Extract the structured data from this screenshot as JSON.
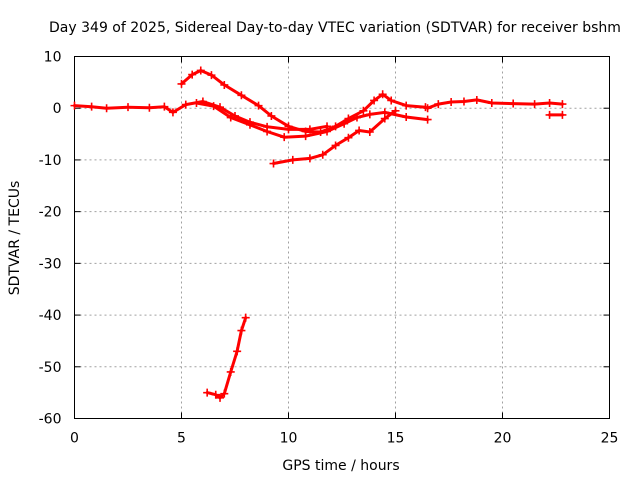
{
  "chart_data": {
    "type": "scatter",
    "title": "Day 349 of 2025, Sidereal Day-to-day VTEC variation (SDTVAR) for receiver bshm",
    "xlabel": "GPS time / hours",
    "ylabel": "SDTVAR / TECUs",
    "xlim": [
      0,
      25
    ],
    "ylim": [
      -60,
      10
    ],
    "xticks": [
      0,
      5,
      10,
      15,
      20,
      25
    ],
    "yticks": [
      10,
      0,
      -10,
      -20,
      -30,
      -40,
      -50,
      -60
    ],
    "grid": true,
    "color": "#ff0000",
    "series": [
      {
        "name": "s1",
        "points": [
          [
            0.0,
            0.5
          ],
          [
            0.8,
            0.3
          ],
          [
            1.5,
            0.0
          ],
          [
            2.5,
            0.2
          ],
          [
            3.5,
            0.1
          ],
          [
            4.2,
            0.3
          ],
          [
            4.6,
            -0.8
          ],
          [
            5.2,
            0.7
          ],
          [
            6.0,
            1.3
          ],
          [
            6.8,
            0.2
          ],
          [
            7.5,
            -1.5
          ],
          [
            8.2,
            -2.7
          ],
          [
            9.0,
            -3.6
          ],
          [
            10.0,
            -4.1
          ],
          [
            11.0,
            -4.1
          ],
          [
            11.8,
            -3.5
          ]
        ]
      },
      {
        "name": "s2",
        "points": [
          [
            5.0,
            4.7
          ],
          [
            5.5,
            6.5
          ],
          [
            5.9,
            7.3
          ],
          [
            6.4,
            6.4
          ],
          [
            7.0,
            4.5
          ],
          [
            7.8,
            2.5
          ],
          [
            8.6,
            0.5
          ],
          [
            9.2,
            -1.5
          ],
          [
            10.0,
            -3.5
          ],
          [
            10.8,
            -4.5
          ],
          [
            11.5,
            -4.6
          ],
          [
            12.2,
            -3.5
          ],
          [
            12.8,
            -2.0
          ],
          [
            13.5,
            -0.5
          ],
          [
            14.0,
            1.5
          ],
          [
            14.4,
            2.7
          ],
          [
            14.8,
            1.5
          ],
          [
            15.5,
            0.5
          ],
          [
            16.4,
            0.2
          ]
        ]
      },
      {
        "name": "s3",
        "points": [
          [
            5.7,
            1.0
          ],
          [
            6.5,
            0.4
          ],
          [
            7.3,
            -1.8
          ],
          [
            8.2,
            -3.2
          ],
          [
            9.0,
            -4.5
          ],
          [
            9.8,
            -5.6
          ],
          [
            10.8,
            -5.4
          ],
          [
            11.8,
            -4.5
          ],
          [
            12.6,
            -3.0
          ],
          [
            13.2,
            -1.8
          ],
          [
            13.8,
            -1.2
          ],
          [
            14.5,
            -0.8
          ],
          [
            15.5,
            -1.7
          ],
          [
            16.5,
            -2.2
          ]
        ]
      },
      {
        "name": "s4",
        "points": [
          [
            9.3,
            -10.7
          ],
          [
            10.2,
            -10.0
          ],
          [
            11.0,
            -9.7
          ],
          [
            11.6,
            -9.0
          ],
          [
            12.2,
            -7.2
          ],
          [
            12.8,
            -5.7
          ],
          [
            13.3,
            -4.3
          ],
          [
            13.8,
            -4.6
          ],
          [
            14.5,
            -2.0
          ],
          [
            15.0,
            -0.5
          ]
        ]
      },
      {
        "name": "s5",
        "points": [
          [
            16.5,
            0.0
          ],
          [
            17.0,
            0.8
          ],
          [
            17.6,
            1.2
          ],
          [
            18.2,
            1.3
          ],
          [
            18.8,
            1.6
          ],
          [
            19.5,
            1.0
          ],
          [
            20.5,
            0.9
          ],
          [
            21.5,
            0.8
          ],
          [
            22.2,
            1.0
          ],
          [
            22.8,
            0.8
          ]
        ]
      },
      {
        "name": "s6",
        "points": [
          [
            22.2,
            -1.3
          ],
          [
            22.8,
            -1.3
          ]
        ]
      },
      {
        "name": "s7",
        "points": [
          [
            6.2,
            -55.0
          ],
          [
            6.6,
            -55.4
          ],
          [
            6.8,
            -56.0
          ],
          [
            7.0,
            -55.2
          ],
          [
            7.3,
            -51.0
          ],
          [
            7.6,
            -47.0
          ],
          [
            7.8,
            -43.0
          ],
          [
            8.0,
            -40.5
          ]
        ]
      }
    ]
  }
}
